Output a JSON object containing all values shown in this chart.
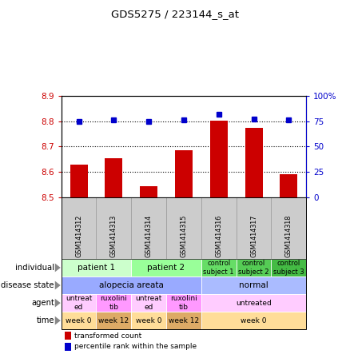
{
  "title": "GDS5275 / 223144_s_at",
  "samples": [
    "GSM1414312",
    "GSM1414313",
    "GSM1414314",
    "GSM1414315",
    "GSM1414316",
    "GSM1414317",
    "GSM1414318"
  ],
  "transformed_count": [
    8.63,
    8.655,
    8.545,
    8.685,
    8.802,
    8.775,
    8.592
  ],
  "percentile_rank": [
    75,
    76,
    75,
    76,
    82,
    77,
    76
  ],
  "ylim_left": [
    8.5,
    8.9
  ],
  "ylim_right": [
    0,
    100
  ],
  "yticks_left": [
    8.5,
    8.6,
    8.7,
    8.8,
    8.9
  ],
  "yticks_right": [
    0,
    25,
    50,
    75,
    100
  ],
  "grid_values": [
    8.6,
    8.7,
    8.8
  ],
  "bar_color": "#cc0000",
  "dot_color": "#0000cc",
  "bar_width": 0.5,
  "rows": [
    {
      "label": "individual",
      "cells": [
        {
          "text": "patient 1",
          "span": 2,
          "color": "#ccffcc",
          "fontsize": 7.5
        },
        {
          "text": "patient 2",
          "span": 2,
          "color": "#99ff99",
          "fontsize": 7.5
        },
        {
          "text": "control\nsubject 1",
          "span": 1,
          "color": "#66dd66",
          "fontsize": 6
        },
        {
          "text": "control\nsubject 2",
          "span": 1,
          "color": "#55cc55",
          "fontsize": 6
        },
        {
          "text": "control\nsubject 3",
          "span": 1,
          "color": "#44bb44",
          "fontsize": 6
        }
      ]
    },
    {
      "label": "disease state",
      "cells": [
        {
          "text": "alopecia areata",
          "span": 4,
          "color": "#99aaff",
          "fontsize": 7.5
        },
        {
          "text": "normal",
          "span": 3,
          "color": "#aabbff",
          "fontsize": 7.5
        }
      ]
    },
    {
      "label": "agent",
      "cells": [
        {
          "text": "untreat\ned",
          "span": 1,
          "color": "#ffccff",
          "fontsize": 6.5
        },
        {
          "text": "ruxolini\ntib",
          "span": 1,
          "color": "#ff99ff",
          "fontsize": 6.5
        },
        {
          "text": "untreat\ned",
          "span": 1,
          "color": "#ffccff",
          "fontsize": 6.5
        },
        {
          "text": "ruxolini\ntib",
          "span": 1,
          "color": "#ff99ff",
          "fontsize": 6.5
        },
        {
          "text": "untreated",
          "span": 3,
          "color": "#ffccff",
          "fontsize": 6.5
        }
      ]
    },
    {
      "label": "time",
      "cells": [
        {
          "text": "week 0",
          "span": 1,
          "color": "#ffdd99",
          "fontsize": 6.5
        },
        {
          "text": "week 12",
          "span": 1,
          "color": "#ddaa66",
          "fontsize": 6.5
        },
        {
          "text": "week 0",
          "span": 1,
          "color": "#ffdd99",
          "fontsize": 6.5
        },
        {
          "text": "week 12",
          "span": 1,
          "color": "#ddaa66",
          "fontsize": 6.5
        },
        {
          "text": "week 0",
          "span": 3,
          "color": "#ffdd99",
          "fontsize": 6.5
        }
      ]
    }
  ],
  "legend": [
    {
      "color": "#cc0000",
      "label": "transformed count"
    },
    {
      "color": "#0000cc",
      "label": "percentile rank within the sample"
    }
  ],
  "sample_bg_color": "#cccccc",
  "sample_border_color": "#999999"
}
